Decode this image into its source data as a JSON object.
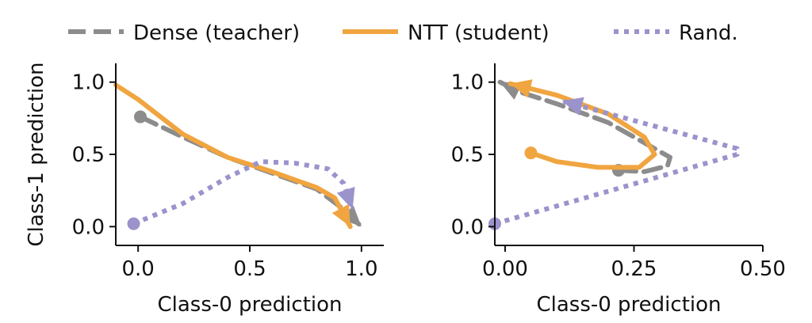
{
  "legend": {
    "dense": "Dense (teacher)",
    "ntt": "NTT (student)",
    "rand": "Rand."
  },
  "colors": {
    "dense": "#8c8c8c",
    "ntt": "#f0a540",
    "rand": "#9b93cc"
  },
  "chart_data": [
    {
      "type": "line",
      "xlabel": "Class-0 prediction",
      "ylabel": "Class-1 prediction",
      "xlim": [
        -0.1,
        1.1
      ],
      "ylim": [
        -0.13,
        1.13
      ],
      "xticks": [
        0.0,
        0.5,
        1.0
      ],
      "xtick_labels": [
        "0.0",
        "0.5",
        "1.0"
      ],
      "yticks": [
        0.0,
        0.5,
        1.0
      ],
      "ytick_labels": [
        "0.0",
        "0.5",
        "1.0"
      ],
      "series": [
        {
          "name": "Dense (teacher)",
          "key": "dense",
          "style": "dashed",
          "start_marker": true,
          "end_arrow": true,
          "x": [
            0.01,
            0.2,
            0.4,
            0.6,
            0.8,
            0.92,
            1.0
          ],
          "y": [
            0.76,
            0.62,
            0.48,
            0.37,
            0.26,
            0.12,
            0.0
          ]
        },
        {
          "name": "NTT (student)",
          "key": "ntt",
          "style": "solid",
          "start_marker": false,
          "end_arrow": true,
          "x": [
            -0.1,
            0.0,
            0.2,
            0.4,
            0.6,
            0.8,
            0.88,
            0.95
          ],
          "y": [
            0.98,
            0.88,
            0.64,
            0.48,
            0.38,
            0.27,
            0.2,
            0.0
          ]
        },
        {
          "name": "Rand.",
          "key": "rand",
          "style": "dotted",
          "start_marker": true,
          "end_arrow": true,
          "x": [
            -0.02,
            0.2,
            0.4,
            0.55,
            0.7,
            0.85,
            0.92,
            0.96
          ],
          "y": [
            0.02,
            0.16,
            0.34,
            0.45,
            0.44,
            0.4,
            0.3,
            0.12
          ]
        }
      ]
    },
    {
      "type": "line",
      "xlabel": "Class-0 prediction",
      "ylabel": "",
      "xlim": [
        -0.02,
        0.5
      ],
      "ylim": [
        -0.13,
        1.13
      ],
      "xticks": [
        0.0,
        0.25,
        0.5
      ],
      "xtick_labels": [
        "0.00",
        "0.25",
        "0.50"
      ],
      "yticks": [
        0.0,
        0.5,
        1.0
      ],
      "ytick_labels": [
        "0.0",
        "0.5",
        "1.0"
      ],
      "series": [
        {
          "name": "Dense (teacher)",
          "key": "dense",
          "style": "dashed",
          "start_marker": true,
          "end_arrow": true,
          "x": [
            0.22,
            0.27,
            0.315,
            0.32,
            0.28,
            0.2,
            0.1,
            0.03,
            -0.01
          ],
          "y": [
            0.39,
            0.38,
            0.42,
            0.48,
            0.56,
            0.72,
            0.85,
            0.93,
            1.0
          ]
        },
        {
          "name": "NTT (student)",
          "key": "ntt",
          "style": "solid",
          "start_marker": true,
          "end_arrow": true,
          "x": [
            0.05,
            0.1,
            0.18,
            0.26,
            0.29,
            0.27,
            0.2,
            0.1,
            0.01
          ],
          "y": [
            0.51,
            0.45,
            0.41,
            0.41,
            0.5,
            0.62,
            0.78,
            0.91,
            0.99
          ]
        },
        {
          "name": "Rand.",
          "key": "rand",
          "style": "dotted",
          "start_marker": true,
          "end_arrow": true,
          "x": [
            -0.02,
            0.45,
            0.45,
            0.11
          ],
          "y": [
            0.02,
            0.5,
            0.54,
            0.87
          ]
        }
      ]
    }
  ]
}
